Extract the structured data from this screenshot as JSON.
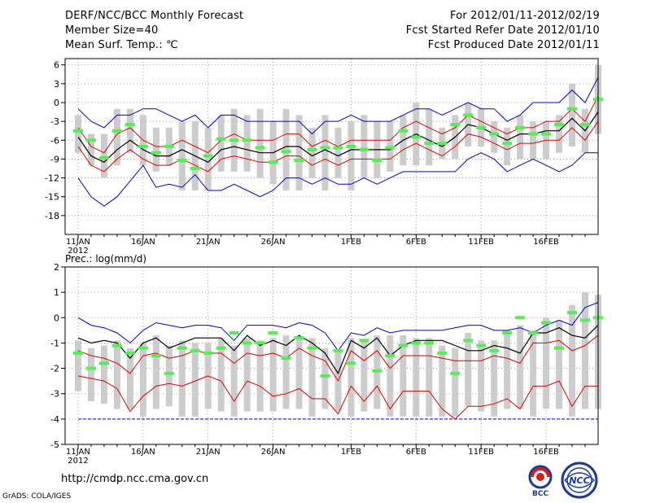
{
  "header": {
    "title": "DERF/NCC/BCC Monthly Forecast",
    "member_size": "Member Size=40",
    "variable": "Mean Surf. Temp.: ℃",
    "period": "For 2012/01/11-2012/02/19",
    "started": "Fcst Started Refer Date 2012/01/10",
    "produced": "Fcst Produced Date 2012/01/11"
  },
  "footer": {
    "url": "http://cmdp.ncc.cma.gov.cn",
    "credit": "GrADS: COLA/IGES",
    "logo_left": "BCC",
    "logo_right": "NCC"
  },
  "colors": {
    "bar": "#cccccc",
    "obs": "#55ee55",
    "envelope": "#0000cc",
    "spread": "#dd0000",
    "mean": "#000000",
    "grid": "#888888"
  },
  "chart_data": [
    {
      "type": "line",
      "title": "Mean Surf. Temp.: ℃",
      "x_tick_labels": [
        "11JAN",
        "16JAN",
        "21JAN",
        "26JAN",
        "1FEB",
        "6FEB",
        "11FEB",
        "16FEB"
      ],
      "x_tick_days": [
        0,
        5,
        10,
        15,
        21,
        26,
        31,
        36
      ],
      "year_label": "2012",
      "xlim": [
        -1,
        40
      ],
      "ylim": [
        -21,
        7
      ],
      "y_ticks": [
        6,
        3,
        0,
        -3,
        -6,
        -9,
        -12,
        -15,
        -18
      ],
      "series": [
        {
          "name": "ensemble_max",
          "values": [
            -1,
            -3,
            -4,
            -2,
            -2,
            -1,
            -1,
            -2,
            -3,
            -2,
            -4,
            -2,
            -2,
            -3,
            -3,
            -3,
            -3,
            -3,
            -5,
            -3,
            -3,
            -2,
            -3,
            -3,
            -3,
            -2,
            -1,
            -1,
            -2,
            -1,
            0,
            -1,
            -1,
            -3,
            -2,
            0,
            0,
            0,
            2,
            0,
            4
          ]
        },
        {
          "name": "spread_upper",
          "values": [
            -4,
            -7,
            -8,
            -5,
            -4,
            -6,
            -7,
            -7,
            -6,
            -7,
            -8,
            -6,
            -5,
            -6,
            -6,
            -6,
            -5,
            -5,
            -7,
            -6,
            -7,
            -6,
            -6,
            -6,
            -6,
            -4,
            -3,
            -4,
            -5,
            -4,
            -2,
            -3,
            -4,
            -5,
            -4,
            -4,
            -3,
            -3,
            -1,
            -3,
            1
          ]
        },
        {
          "name": "ensemble_mean",
          "values": [
            -5.5,
            -8.5,
            -9.5,
            -7.5,
            -6,
            -7.5,
            -8.5,
            -8.5,
            -7.5,
            -8.5,
            -9.5,
            -7.5,
            -7,
            -7.5,
            -8,
            -8,
            -7,
            -7,
            -8.5,
            -7.5,
            -8.5,
            -7.5,
            -7.5,
            -7.5,
            -7.5,
            -6,
            -5,
            -6,
            -7,
            -5.5,
            -3.5,
            -4,
            -5,
            -6,
            -5,
            -5,
            -4.5,
            -4.5,
            -2.5,
            -4.5,
            -1.5
          ]
        },
        {
          "name": "spread_lower",
          "values": [
            -7,
            -10,
            -11,
            -9,
            -7.5,
            -9,
            -10,
            -10,
            -9,
            -10,
            -11,
            -9,
            -8.5,
            -9,
            -9.5,
            -9.5,
            -8.5,
            -8.5,
            -10,
            -9,
            -10,
            -9,
            -9,
            -9,
            -9,
            -7.5,
            -6.5,
            -7.5,
            -8.5,
            -7,
            -5,
            -5.5,
            -6.5,
            -7.5,
            -6.5,
            -6.5,
            -6,
            -6,
            -4,
            -6,
            -3
          ]
        },
        {
          "name": "ensemble_min",
          "values": [
            -12,
            -15,
            -16.5,
            -15,
            -12.5,
            -10,
            -13.5,
            -13,
            -13.5,
            -11.5,
            -14,
            -14,
            -13,
            -14,
            -15,
            -14,
            -12,
            -12,
            -13,
            -12,
            -13,
            -13,
            -12,
            -13,
            -12,
            -11,
            -11,
            -11,
            -11,
            -11,
            -9,
            -8,
            -9,
            -11,
            -10,
            -9,
            -10,
            -11,
            -10,
            -8,
            -8
          ]
        },
        {
          "name": "observed",
          "values": [
            -4.5,
            -6,
            -8.8,
            -4.5,
            -3.5,
            -7,
            -8,
            -7,
            -9.2,
            -10.5,
            -8.5,
            -5.8,
            -6,
            -6,
            -7.2,
            -9.5,
            -7.8,
            -9.2,
            -7.5,
            -7.2,
            -7.2,
            -7,
            -7.5,
            -9.2,
            -7.2,
            -4.5,
            -5.5,
            -6.5,
            -6.5,
            -3.5,
            -2,
            -4,
            -5,
            -6.5,
            -4,
            -5,
            -5,
            -3.5,
            -1,
            -3.5,
            0.5
          ]
        },
        {
          "name": "bar_top",
          "values": [
            -2,
            -5,
            -5,
            -1,
            -1,
            -2,
            -4,
            -4,
            -3,
            -3,
            -4,
            -2,
            -1,
            -2,
            -1,
            -3,
            -1,
            -2,
            -4,
            -2,
            -4,
            -3,
            -2,
            -3,
            -3,
            -2,
            0,
            -1,
            -4,
            -2,
            0,
            -1,
            -3,
            -4,
            -2,
            -3,
            -3,
            -2,
            3,
            -1,
            6
          ]
        },
        {
          "name": "bar_bottom",
          "values": [
            -8,
            -10,
            -12,
            -10,
            -8,
            -10,
            -11,
            -10,
            -14,
            -14,
            -14,
            -11,
            -11,
            -11,
            -12,
            -13,
            -14,
            -14,
            -12,
            -14,
            -12,
            -14,
            -12,
            -12,
            -11,
            -10,
            -10,
            -10,
            -9,
            -9,
            -7,
            -7,
            -8,
            -10,
            -9,
            -9,
            -9,
            -8,
            -7,
            -8,
            -5
          ]
        }
      ]
    },
    {
      "type": "line",
      "title": "Prec.: log(mm/d)",
      "x_tick_labels": [
        "11JAN",
        "16JAN",
        "21JAN",
        "26JAN",
        "1FEB",
        "6FEB",
        "11FEB",
        "16FEB"
      ],
      "x_tick_days": [
        0,
        5,
        10,
        15,
        21,
        26,
        31,
        36
      ],
      "year_label": "2012",
      "xlim": [
        -1,
        40
      ],
      "ylim": [
        -5,
        2
      ],
      "y_ticks": [
        2,
        1,
        0,
        -1,
        -2,
        -3,
        -4,
        -5
      ],
      "series": [
        {
          "name": "ensemble_max",
          "values": [
            0,
            -0.3,
            -0.4,
            -0.6,
            -1,
            -0.5,
            -0.2,
            -0.3,
            -0.4,
            -0.3,
            -0.3,
            -0.4,
            -0.9,
            -0.3,
            -0.3,
            -0.3,
            -0.4,
            -0.2,
            -0.3,
            -0.6,
            -1.3,
            -0.6,
            -0.7,
            -0.4,
            -0.6,
            -0.5,
            -0.5,
            -0.5,
            -0.5,
            -0.4,
            -0.3,
            -0.3,
            -0.5,
            -0.5,
            -0.4,
            -0.6,
            -0.3,
            -0.1,
            -0.3,
            0.4,
            0.6
          ]
        },
        {
          "name": "ensemble_mean",
          "values": [
            -0.8,
            -1,
            -0.9,
            -1,
            -1.6,
            -1,
            -0.8,
            -1.2,
            -1,
            -0.8,
            -0.8,
            -0.8,
            -1.3,
            -0.7,
            -1.1,
            -0.9,
            -1.1,
            -0.7,
            -1,
            -1.4,
            -2.2,
            -0.9,
            -1.2,
            -0.8,
            -1.5,
            -1.1,
            -0.9,
            -0.9,
            -0.9,
            -1.1,
            -1.3,
            -1.3,
            -1.1,
            -1.2,
            -1.4,
            -0.6,
            -0.6,
            -0.4,
            -0.7,
            -0.8,
            -0.3
          ]
        },
        {
          "name": "spread_lower",
          "values": [
            -1.3,
            -1.5,
            -1.6,
            -1.8,
            -2.2,
            -1.5,
            -1.4,
            -1.6,
            -1.5,
            -1.3,
            -1.4,
            -1.4,
            -1.8,
            -1.4,
            -1.5,
            -1.4,
            -1.6,
            -1.2,
            -1.5,
            -1.7,
            -2.5,
            -1.3,
            -1.7,
            -1.3,
            -2,
            -1.5,
            -1.5,
            -1.5,
            -1.6,
            -1.7,
            -1.7,
            -1.7,
            -1.5,
            -1.6,
            -1.8,
            -1,
            -1,
            -0.9,
            -1.3,
            -1.1,
            -0.7
          ]
        },
        {
          "name": "spread_lowest",
          "values": [
            -2.3,
            -2.4,
            -2.5,
            -2.8,
            -3.7,
            -3.1,
            -2.7,
            -2.6,
            -2.7,
            -2.5,
            -2.3,
            -2.5,
            -3.3,
            -2.5,
            -2.7,
            -3.1,
            -3,
            -2.8,
            -3.2,
            -3.2,
            -3.8,
            -2.7,
            -3.3,
            -2.7,
            -3.6,
            -2.9,
            -2.9,
            -2.9,
            -3.6,
            -4,
            -3.5,
            -3.5,
            -3.4,
            -3.2,
            -3.6,
            -2.7,
            -2.7,
            -2.5,
            -3.5,
            -2.7,
            -2.7
          ]
        },
        {
          "name": "lower_bound",
          "values": [
            -4,
            -4,
            -4,
            -4,
            -4,
            -4,
            -4,
            -4,
            -4,
            -4,
            -4,
            -4,
            -4,
            -4,
            -4,
            -4,
            -4,
            -4,
            -4,
            -4,
            -4,
            -4,
            -4,
            -4,
            -4,
            -4,
            -4,
            -4,
            -4,
            -4,
            -4,
            -4,
            -4,
            -4,
            -4,
            -4,
            -4,
            -4,
            -4,
            -4,
            -4
          ]
        },
        {
          "name": "observed",
          "values": [
            -1.4,
            -2,
            -1.8,
            -1.1,
            -1.4,
            -1.2,
            -1.5,
            -2.2,
            -1.2,
            -1.3,
            -1.4,
            -1.2,
            -0.6,
            -1,
            -1,
            -0.6,
            -1.6,
            -0.8,
            -1.2,
            -2.3,
            -1.3,
            -1.8,
            -0.9,
            -2.1,
            -1.5,
            -1.1,
            -1,
            -1,
            -1.4,
            -2.2,
            -0.9,
            -1.1,
            -1.3,
            -0.6,
            0,
            -0.6,
            -0.2,
            -1.2,
            0.2,
            -0.1,
            0
          ]
        },
        {
          "name": "bar_top",
          "values": [
            -0.9,
            -1.2,
            -1.1,
            -0.9,
            -1.2,
            -1,
            -0.7,
            -1.1,
            -0.9,
            -1,
            -1,
            -0.8,
            -1.1,
            -0.8,
            -0.9,
            -0.8,
            -0.7,
            -0.8,
            -0.8,
            -1.2,
            -1.3,
            -0.8,
            -0.9,
            -0.7,
            -0.7,
            -0.7,
            -0.8,
            -0.8,
            -1.1,
            -1.2,
            -0.6,
            -0.9,
            -0.9,
            -0.5,
            -0.3,
            -0.5,
            0,
            -0.1,
            0.5,
            1,
            0.9
          ]
        },
        {
          "name": "bar_bottom",
          "values": [
            -2.9,
            -3.3,
            -3.4,
            -3.6,
            -3.6,
            -3.9,
            -3.6,
            -3.5,
            -3.9,
            -3.9,
            -3.6,
            -3.7,
            -3.9,
            -3.7,
            -3.7,
            -3.7,
            -3.6,
            -3.6,
            -3.9,
            -3.6,
            -3.7,
            -3.9,
            -3.7,
            -3.6,
            -3.9,
            -3.9,
            -3.9,
            -3.9,
            -3.9,
            -3.9,
            -3.5,
            -3.7,
            -3.9,
            -3.6,
            -3.6,
            -3.9,
            -3.6,
            -3.6,
            -3.9,
            -3.6,
            -3.6
          ]
        }
      ]
    }
  ],
  "prec_label": "Prec.: log(mm/d)"
}
